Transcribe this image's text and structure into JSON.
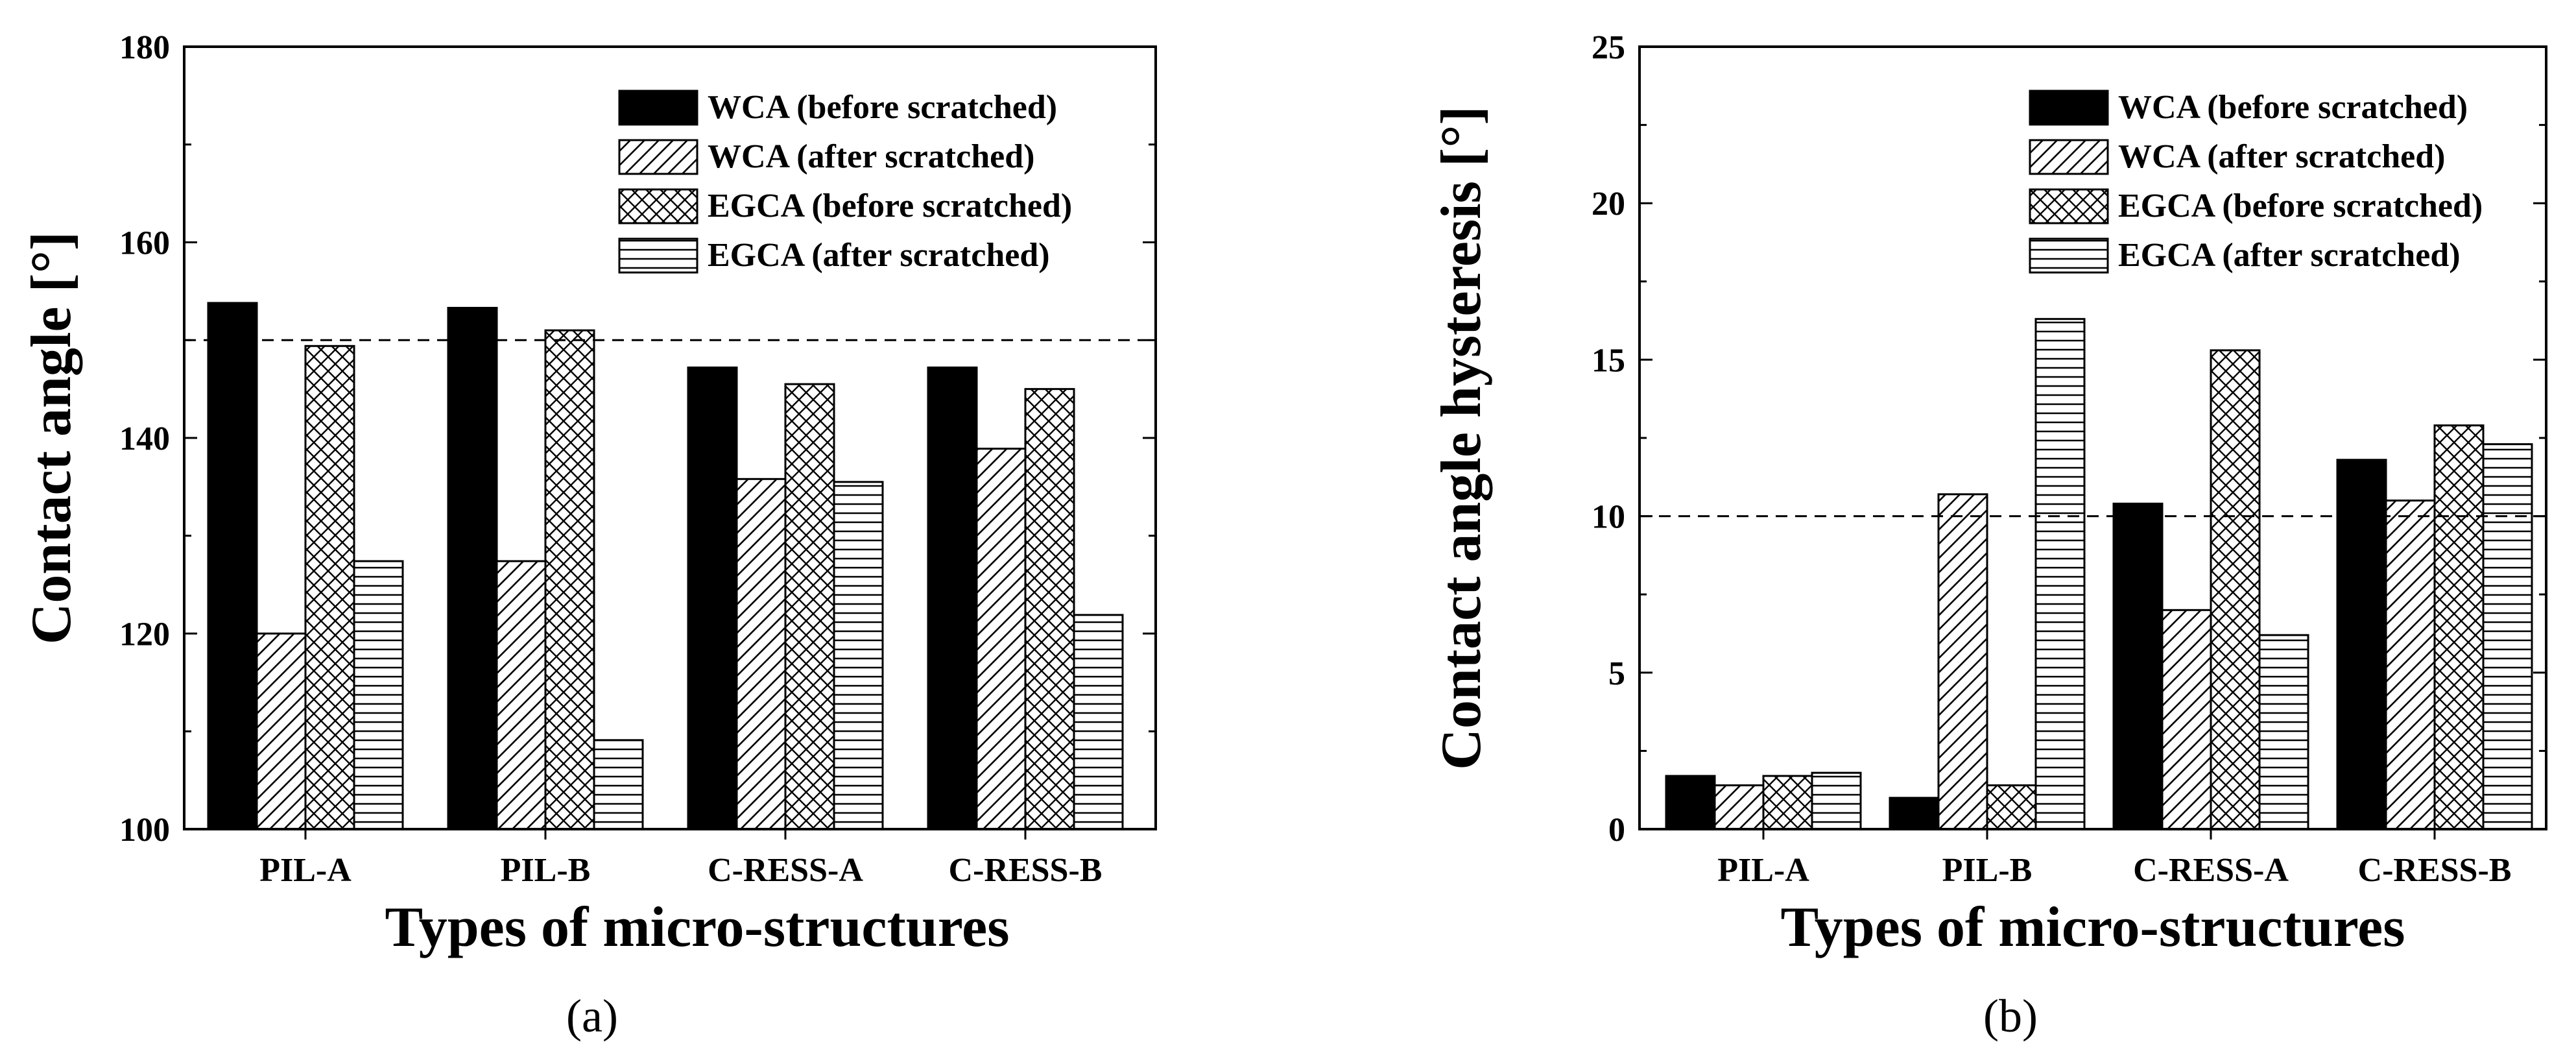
{
  "chart_data": [
    {
      "type": "bar",
      "panel_label": "(a)",
      "categories": [
        "PIL-A",
        "PIL-B",
        "C-RESS-A",
        "C-RESS-B"
      ],
      "series": [
        {
          "name": "WCA (before scratched)",
          "pattern": "solid",
          "values": [
            153.8,
            153.3,
            147.2,
            147.2
          ]
        },
        {
          "name": "WCA (after scratched)",
          "pattern": "diagonal",
          "values": [
            120.0,
            127.4,
            135.8,
            138.9
          ]
        },
        {
          "name": "EGCA (before scratched)",
          "pattern": "crosshatch",
          "values": [
            149.4,
            151.0,
            145.5,
            145.0
          ]
        },
        {
          "name": "EGCA (after scratched)",
          "pattern": "horizontal",
          "values": [
            127.4,
            109.1,
            135.5,
            121.9
          ]
        }
      ],
      "xlabel": "Types of micro-structures",
      "ylabel": "Contact angle [°]",
      "ylim": [
        100,
        180
      ],
      "yticks": [
        100,
        120,
        140,
        160,
        180
      ],
      "reference_line": 150,
      "legend_position": "top-right"
    },
    {
      "type": "bar",
      "panel_label": "(b)",
      "categories": [
        "PIL-A",
        "PIL-B",
        "C-RESS-A",
        "C-RESS-B"
      ],
      "series": [
        {
          "name": "WCA (before scratched)",
          "pattern": "solid",
          "values": [
            1.7,
            1.0,
            10.4,
            11.8
          ]
        },
        {
          "name": "WCA (after scratched)",
          "pattern": "diagonal",
          "values": [
            1.4,
            10.7,
            7.0,
            10.5
          ]
        },
        {
          "name": "EGCA (before scratched)",
          "pattern": "crosshatch",
          "values": [
            1.7,
            1.4,
            15.3,
            12.9
          ]
        },
        {
          "name": "EGCA (after scratched)",
          "pattern": "horizontal",
          "values": [
            1.8,
            16.3,
            6.2,
            12.3
          ]
        }
      ],
      "xlabel": "Types of micro-structures",
      "ylabel": "Contact angle hysteresis [°]",
      "ylim": [
        0,
        25
      ],
      "yticks": [
        0,
        5,
        10,
        15,
        20,
        25
      ],
      "reference_line": 10,
      "legend_position": "top-right"
    }
  ]
}
